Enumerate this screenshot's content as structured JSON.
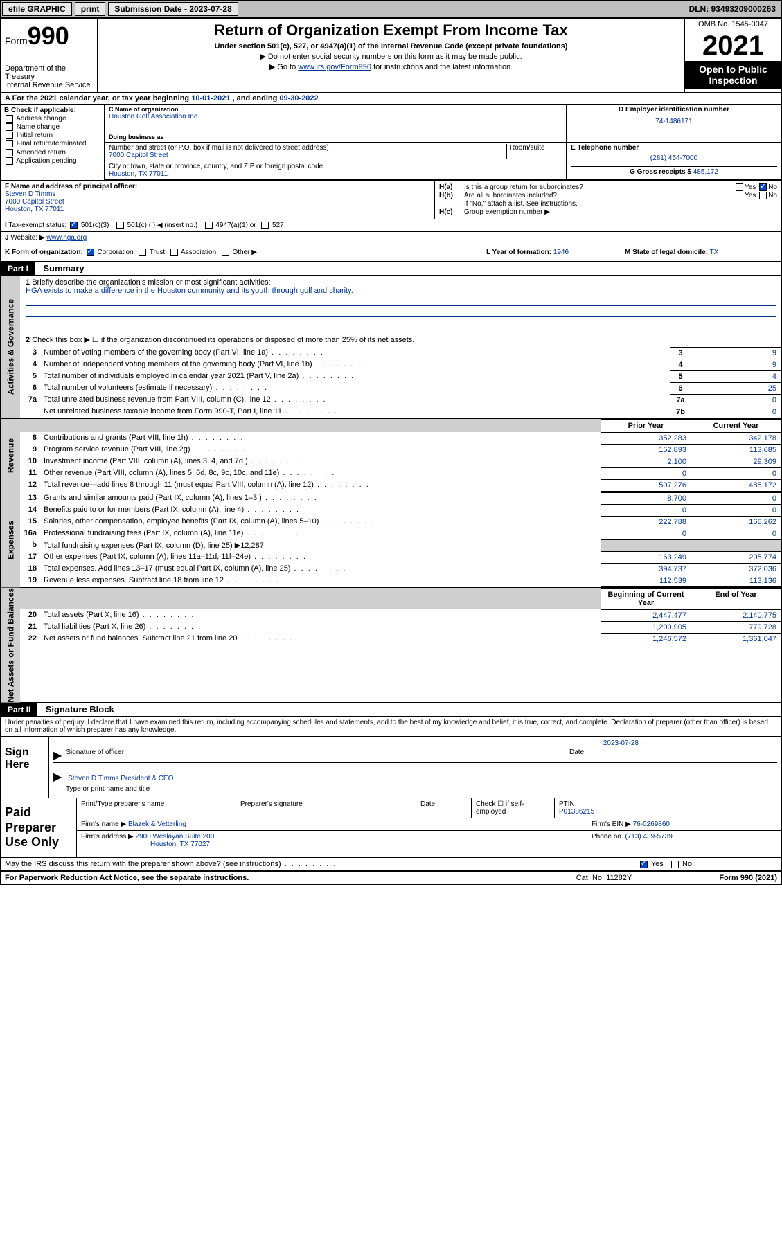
{
  "topbar": {
    "efile_label": "efile GRAPHIC",
    "print_label": "print",
    "submission_label": "Submission Date - 2023-07-28",
    "dln_label": "DLN: 93493209000263"
  },
  "header": {
    "form_word": "Form",
    "form_num": "990",
    "title": "Return of Organization Exempt From Income Tax",
    "subtitle": "Under section 501(c), 527, or 4947(a)(1) of the Internal Revenue Code (except private foundations)",
    "note1": "▶ Do not enter social security numbers on this form as it may be made public.",
    "note2_pre": "▶ Go to ",
    "note2_link": "www.irs.gov/Form990",
    "note2_post": " for instructions and the latest information.",
    "dept": "Department of the Treasury",
    "irs": "Internal Revenue Service",
    "omb": "OMB No. 1545-0047",
    "year": "2021",
    "open": "Open to Public Inspection"
  },
  "rowA": {
    "text_pre": "A For the 2021 calendar year, or tax year beginning ",
    "begin": "10-01-2021",
    "mid": " , and ending ",
    "end": "09-30-2022"
  },
  "colB": {
    "hdr": "B Check if applicable:",
    "items": [
      "Address change",
      "Name change",
      "Initial return",
      "Final return/terminated",
      "Amended return",
      "Application pending"
    ]
  },
  "colC": {
    "name_lbl": "C Name of organization",
    "name": "Houston Golf Association Inc",
    "dba_lbl": "Doing business as",
    "addr_lbl": "Number and street (or P.O. box if mail is not delivered to street address)",
    "room_lbl": "Room/suite",
    "addr": "7000 Capitol Street",
    "city_lbl": "City or town, state or province, country, and ZIP or foreign postal code",
    "city": "Houston, TX  77011"
  },
  "colD": {
    "lbl": "D Employer identification number",
    "val": "74-1486171"
  },
  "colE": {
    "lbl": "E Telephone number",
    "val": "(281) 454-7000"
  },
  "colG": {
    "lbl": "G Gross receipts $",
    "val": "485,172"
  },
  "colF": {
    "lbl": "F Name and address of principal officer:",
    "name": "Steven D Timms",
    "addr1": "7000 Capitol Street",
    "addr2": "Houston, TX  77011"
  },
  "colH": {
    "a_lbl": "H(a)",
    "a_txt": "Is this a group return for subordinates?",
    "b_lbl": "H(b)",
    "b_txt": "Are all subordinates included?",
    "b_note": "If \"No,\" attach a list. See instructions.",
    "c_lbl": "H(c)",
    "c_txt": "Group exemption number ▶",
    "yes": "Yes",
    "no": "No"
  },
  "rowI": {
    "lbl": "I",
    "txt": "Tax-exempt status:",
    "opt1": "501(c)(3)",
    "opt2": "501(c) (  ) ◀ (insert no.)",
    "opt3": "4947(a)(1) or",
    "opt4": "527"
  },
  "rowJ": {
    "lbl": "J",
    "txt": "Website: ▶",
    "val": "www.hga.org"
  },
  "rowK": {
    "lbl": "K Form of organization:",
    "opts": [
      "Corporation",
      "Trust",
      "Association",
      "Other ▶"
    ],
    "l_lbl": "L Year of formation:",
    "l_val": "1946",
    "m_lbl": "M State of legal domicile:",
    "m_val": "TX"
  },
  "part1": {
    "hdr": "Part I",
    "title": "Summary",
    "q1_lbl": "1",
    "q1_txt": "Briefly describe the organization's mission or most significant activities:",
    "q1_val": "HGA exists to make a difference in the Houston community and its youth through golf and charity.",
    "q2_lbl": "2",
    "q2_txt": "Check this box ▶ ☐ if the organization discontinued its operations or disposed of more than 25% of its net assets.",
    "rows_gov": [
      {
        "n": "3",
        "d": "Number of voting members of the governing body (Part VI, line 1a)",
        "b": "3",
        "v": "9"
      },
      {
        "n": "4",
        "d": "Number of independent voting members of the governing body (Part VI, line 1b)",
        "b": "4",
        "v": "9"
      },
      {
        "n": "5",
        "d": "Total number of individuals employed in calendar year 2021 (Part V, line 2a)",
        "b": "5",
        "v": "4"
      },
      {
        "n": "6",
        "d": "Total number of volunteers (estimate if necessary)",
        "b": "6",
        "v": "25"
      },
      {
        "n": "7a",
        "d": "Total unrelated business revenue from Part VIII, column (C), line 12",
        "b": "7a",
        "v": "0"
      },
      {
        "n": "",
        "d": "Net unrelated business taxable income from Form 990-T, Part I, line 11",
        "b": "7b",
        "v": "0"
      }
    ],
    "yr_prior": "Prior Year",
    "yr_curr": "Current Year",
    "rows_rev": [
      {
        "n": "8",
        "d": "Contributions and grants (Part VIII, line 1h)",
        "p": "352,283",
        "c": "342,178"
      },
      {
        "n": "9",
        "d": "Program service revenue (Part VIII, line 2g)",
        "p": "152,893",
        "c": "113,685"
      },
      {
        "n": "10",
        "d": "Investment income (Part VIII, column (A), lines 3, 4, and 7d )",
        "p": "2,100",
        "c": "29,309"
      },
      {
        "n": "11",
        "d": "Other revenue (Part VIII, column (A), lines 5, 6d, 8c, 9c, 10c, and 11e)",
        "p": "0",
        "c": "0"
      },
      {
        "n": "12",
        "d": "Total revenue—add lines 8 through 11 (must equal Part VIII, column (A), line 12)",
        "p": "507,276",
        "c": "485,172"
      }
    ],
    "rows_exp": [
      {
        "n": "13",
        "d": "Grants and similar amounts paid (Part IX, column (A), lines 1–3 )",
        "p": "8,700",
        "c": "0"
      },
      {
        "n": "14",
        "d": "Benefits paid to or for members (Part IX, column (A), line 4)",
        "p": "0",
        "c": "0"
      },
      {
        "n": "15",
        "d": "Salaries, other compensation, employee benefits (Part IX, column (A), lines 5–10)",
        "p": "222,788",
        "c": "166,262"
      },
      {
        "n": "16a",
        "d": "Professional fundraising fees (Part IX, column (A), line 11e)",
        "p": "0",
        "c": "0"
      },
      {
        "n": "b",
        "d": "Total fundraising expenses (Part IX, column (D), line 25) ▶12,287",
        "p": "",
        "c": "",
        "shade": true
      },
      {
        "n": "17",
        "d": "Other expenses (Part IX, column (A), lines 11a–11d, 11f–24e)",
        "p": "163,249",
        "c": "205,774"
      },
      {
        "n": "18",
        "d": "Total expenses. Add lines 13–17 (must equal Part IX, column (A), line 25)",
        "p": "394,737",
        "c": "372,036"
      },
      {
        "n": "19",
        "d": "Revenue less expenses. Subtract line 18 from line 12",
        "p": "112,539",
        "c": "113,136"
      }
    ],
    "na_hdr_b": "Beginning of Current Year",
    "na_hdr_e": "End of Year",
    "rows_na": [
      {
        "n": "20",
        "d": "Total assets (Part X, line 16)",
        "p": "2,447,477",
        "c": "2,140,775"
      },
      {
        "n": "21",
        "d": "Total liabilities (Part X, line 26)",
        "p": "1,200,905",
        "c": "779,728"
      },
      {
        "n": "22",
        "d": "Net assets or fund balances. Subtract line 21 from line 20",
        "p": "1,246,572",
        "c": "1,361,047"
      }
    ],
    "vtab_gov": "Activities & Governance",
    "vtab_rev": "Revenue",
    "vtab_exp": "Expenses",
    "vtab_na": "Net Assets or Fund Balances"
  },
  "part2": {
    "hdr": "Part II",
    "title": "Signature Block",
    "decl": "Under penalties of perjury, I declare that I have examined this return, including accompanying schedules and statements, and to the best of my knowledge and belief, it is true, correct, and complete. Declaration of preparer (other than officer) is based on all information of which preparer has any knowledge.",
    "sign_here": "Sign Here",
    "sig_officer": "Signature of officer",
    "sig_date": "Date",
    "sig_date_val": "2023-07-28",
    "name_title": "Steven D Timms  President & CEO",
    "type_name": "Type or print name and title",
    "paid": "Paid Preparer Use Only",
    "pt_name_lbl": "Print/Type preparer's name",
    "pt_sig_lbl": "Preparer's signature",
    "pt_date_lbl": "Date",
    "pt_check_lbl": "Check ☐ if self-employed",
    "ptin_lbl": "PTIN",
    "ptin_val": "P01386215",
    "firm_name_lbl": "Firm's name   ▶",
    "firm_name": "Blazek & Vetterling",
    "firm_ein_lbl": "Firm's EIN ▶",
    "firm_ein": "76-0269860",
    "firm_addr_lbl": "Firm's address ▶",
    "firm_addr": "2900 Weslayan Suite 200",
    "firm_city": "Houston, TX  77027",
    "phone_lbl": "Phone no.",
    "phone": "(713) 439-5739",
    "may_irs": "May the IRS discuss this return with the preparer shown above? (see instructions)",
    "yes": "Yes",
    "no": "No"
  },
  "footer": {
    "pra": "For Paperwork Reduction Act Notice, see the separate instructions.",
    "cat": "Cat. No. 11282Y",
    "form": "Form 990 (2021)"
  }
}
